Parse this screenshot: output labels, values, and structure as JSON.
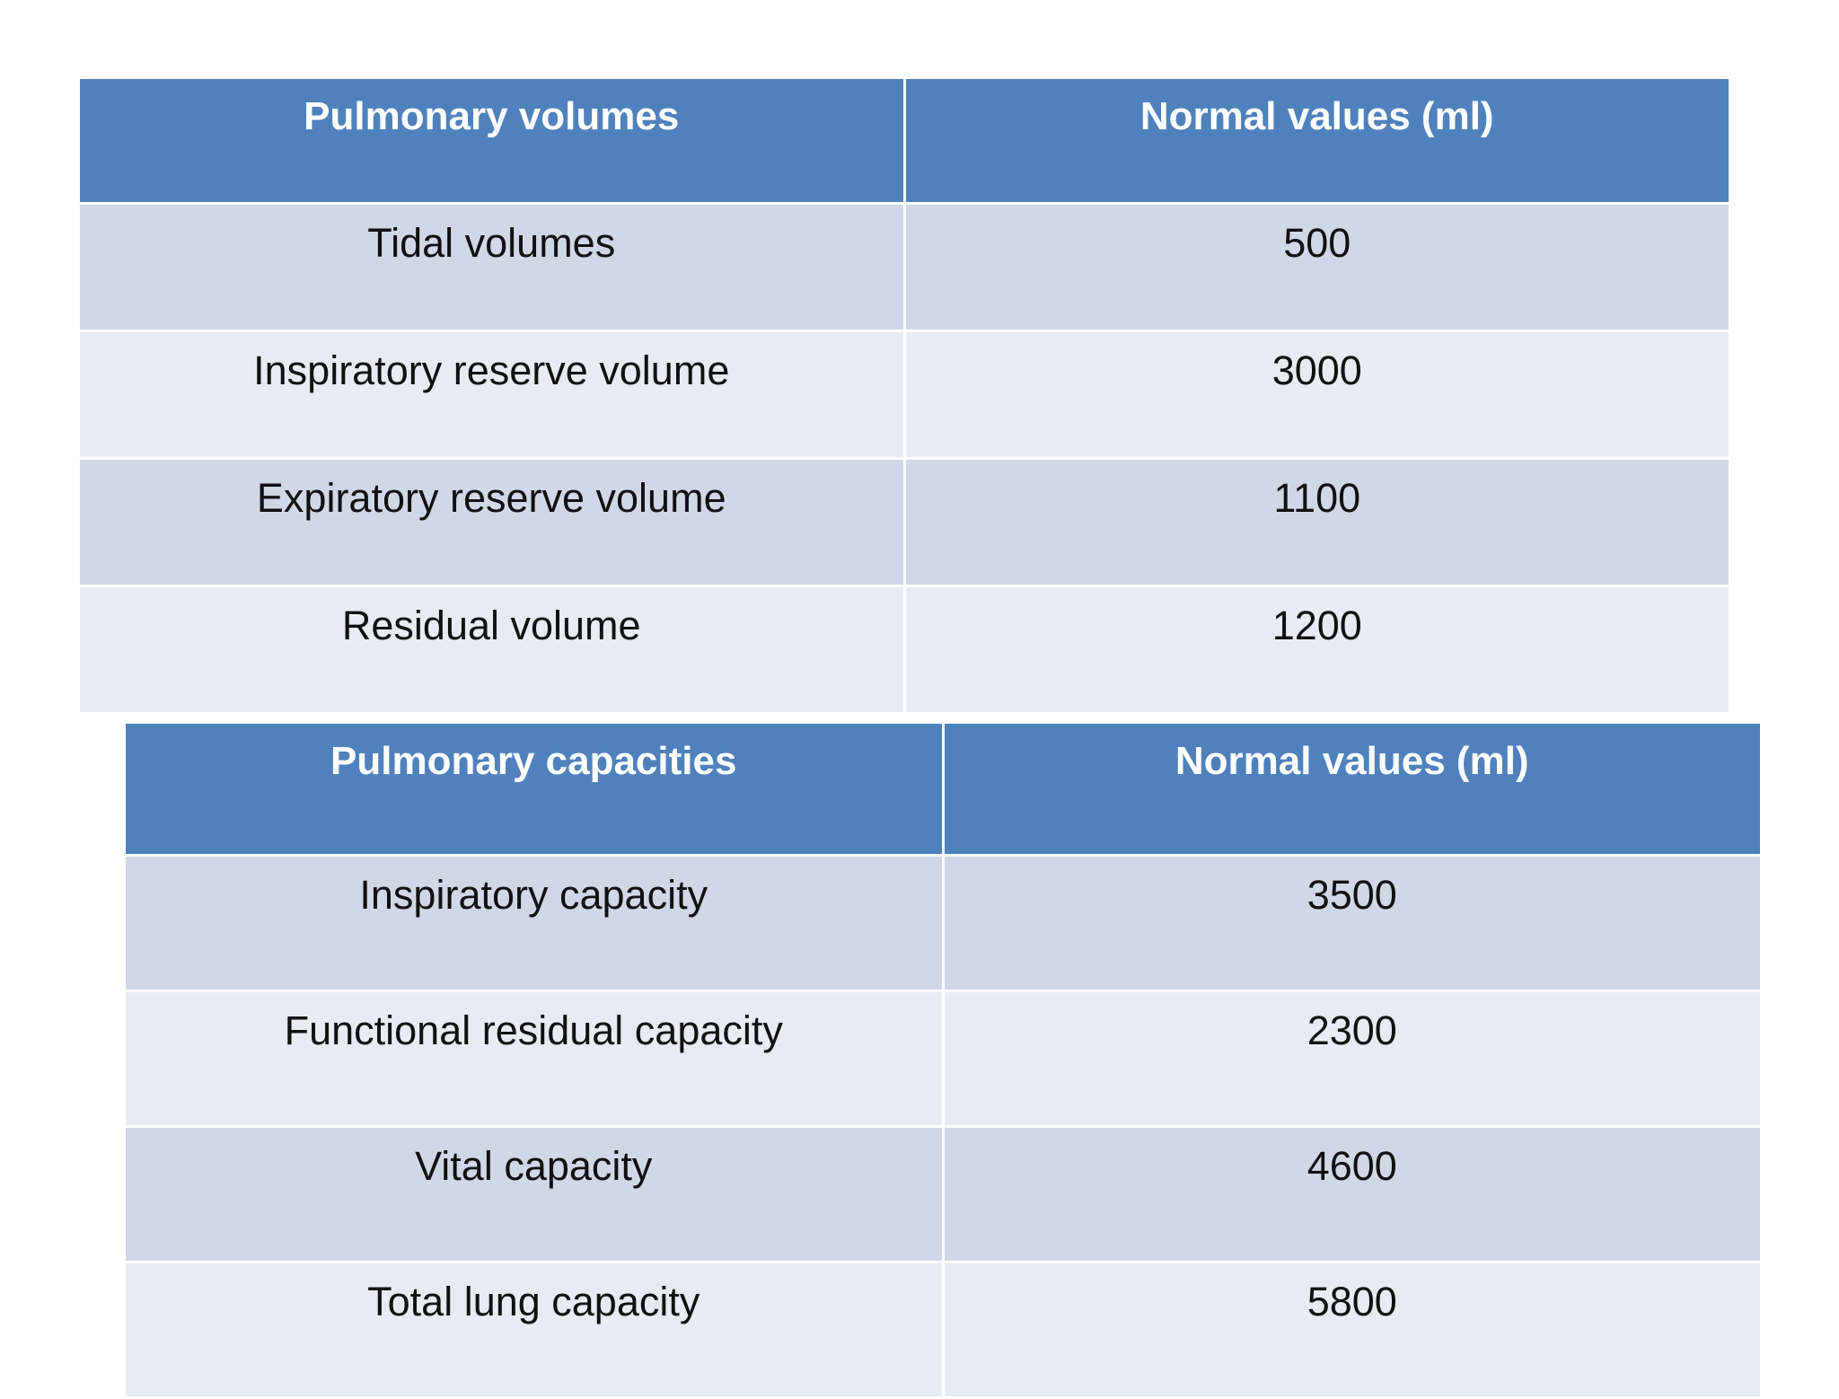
{
  "volumes_table": {
    "headers": [
      "Pulmonary volumes",
      "Normal values (ml)"
    ],
    "rows": [
      {
        "name": "Tidal volumes",
        "value": "500"
      },
      {
        "name": "Inspiratory reserve volume",
        "value": "3000"
      },
      {
        "name": "Expiratory reserve volume",
        "value": "1100"
      },
      {
        "name": "Residual volume",
        "value": "1200"
      }
    ]
  },
  "capacities_table": {
    "headers": [
      "Pulmonary capacities",
      "Normal values (ml)"
    ],
    "rows": [
      {
        "name": "Inspiratory capacity",
        "value": "3500"
      },
      {
        "name": "Functional residual capacity",
        "value": "2300"
      },
      {
        "name": "Vital capacity",
        "value": "4600"
      },
      {
        "name": "Total lung capacity",
        "value": "5800"
      }
    ]
  },
  "colors": {
    "header_bg": "#4f81bd",
    "row_band_dark": "#d0d8e8",
    "row_band_light": "#e9ebf4"
  }
}
